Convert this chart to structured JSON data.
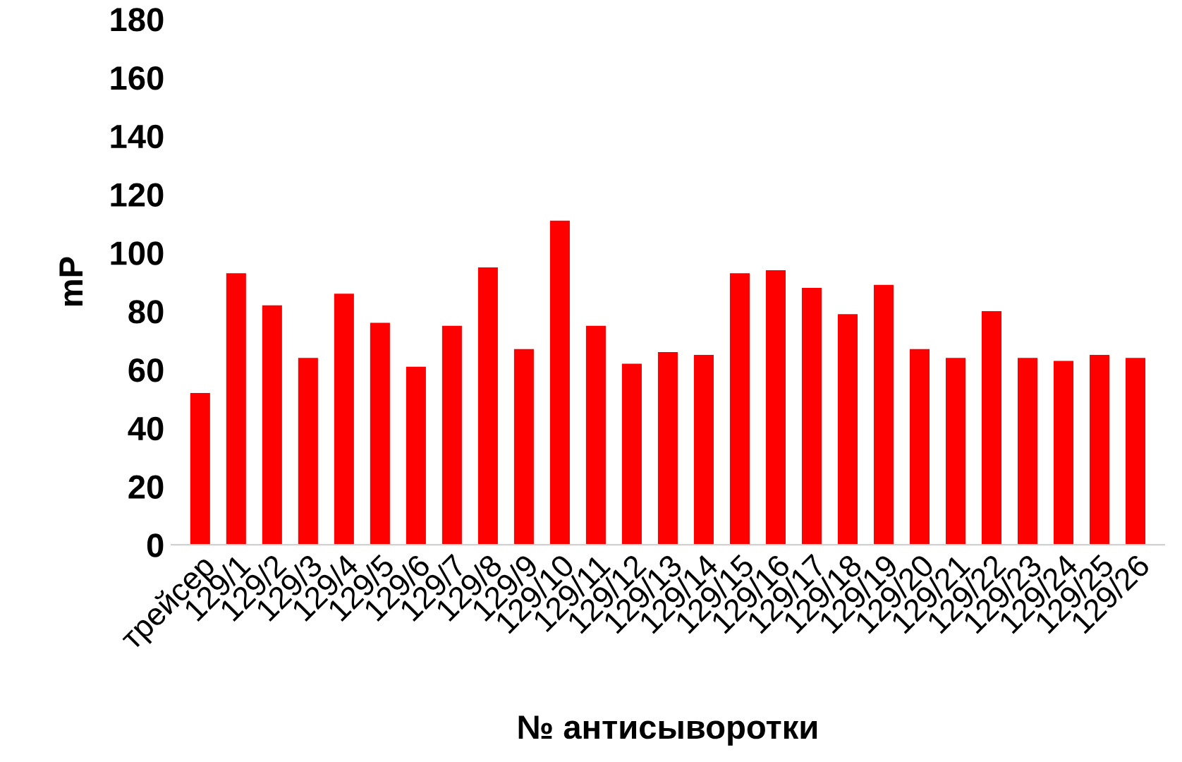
{
  "chart_data": {
    "type": "bar",
    "xlabel": "№ антисыворотки",
    "ylabel": "mP",
    "categories": [
      "трейсер",
      "129/1",
      "129/2",
      "129/3",
      "129/4",
      "129/5",
      "129/6",
      "129/7",
      "129/8",
      "129/9",
      "129/10",
      "129/11",
      "129/12",
      "129/13",
      "129/14",
      "129/15",
      "129/16",
      "129/17",
      "129/18",
      "129/19",
      "129/20",
      "129/21",
      "129/22",
      "129/23",
      "129/24",
      "129/25",
      "129/26"
    ],
    "values": [
      52,
      93,
      82,
      64,
      86,
      76,
      61,
      75,
      95,
      67,
      111,
      75,
      62,
      66,
      65,
      93,
      94,
      88,
      79,
      89,
      67,
      64,
      80,
      64,
      63,
      65,
      64
    ],
    "color": "#ff0000",
    "ylim": [
      0,
      180
    ],
    "yticks": [
      0,
      20,
      40,
      60,
      80,
      100,
      120,
      140,
      160,
      180
    ],
    "grid": false,
    "legend": false
  }
}
